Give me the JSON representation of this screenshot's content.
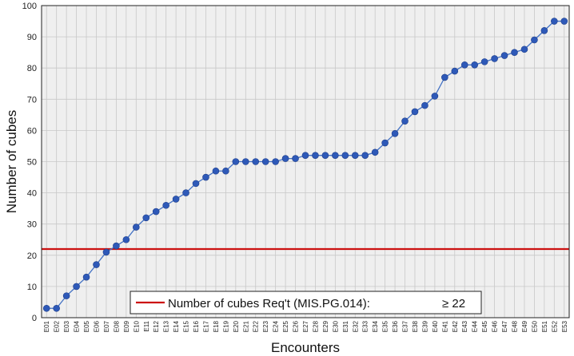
{
  "chart_data": {
    "type": "line",
    "xlabel": "Encounters",
    "ylabel": "Number of cubes",
    "ylim": [
      0,
      100
    ],
    "yticks": [
      0,
      10,
      20,
      30,
      40,
      50,
      60,
      70,
      80,
      90,
      100
    ],
    "grid": true,
    "categories": [
      "E01",
      "E02",
      "E03",
      "E04",
      "E05",
      "E06",
      "E07",
      "E08",
      "E09",
      "E10",
      "E11",
      "E12",
      "E13",
      "E14",
      "E15",
      "E16",
      "E17",
      "E18",
      "E19",
      "E20",
      "E21",
      "E22",
      "E23",
      "E24",
      "E25",
      "E26",
      "E27",
      "E28",
      "E29",
      "E30",
      "E31",
      "E32",
      "E33",
      "E34",
      "E35",
      "E36",
      "E37",
      "E38",
      "E39",
      "E40",
      "E41",
      "E42",
      "E43",
      "E44",
      "E45",
      "E46",
      "E47",
      "E48",
      "E49",
      "E50",
      "E51",
      "E52",
      "E53"
    ],
    "series": [
      {
        "name": "",
        "color": "#4472c4",
        "marker_color": "#2e59b8",
        "values": [
          3,
          3,
          7,
          10,
          13,
          17,
          21,
          23,
          25,
          29,
          32,
          34,
          36,
          38,
          40,
          43,
          45,
          47,
          47,
          50,
          50,
          50,
          50,
          50,
          51,
          51,
          52,
          52,
          52,
          52,
          52,
          52,
          52,
          53,
          56,
          59,
          63,
          66,
          68,
          71,
          77,
          79,
          81,
          81,
          82,
          83,
          84,
          85,
          86,
          89,
          92,
          95,
          95
        ]
      }
    ],
    "reference_line": {
      "value": 22,
      "color": "#cc1111",
      "legend_label": "Number of cubes Req't (MIS.PG.014):",
      "legend_value": "≥ 22"
    }
  }
}
